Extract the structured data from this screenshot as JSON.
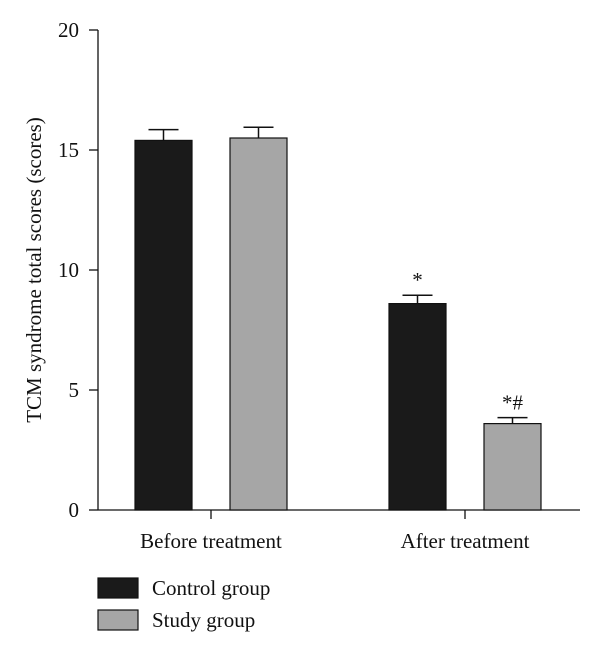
{
  "chart_data": {
    "type": "bar",
    "title": "",
    "xlabel": "",
    "ylabel": "TCM syndrome total scores (scores)",
    "categories": [
      "Before treatment",
      "After treatment"
    ],
    "series": [
      {
        "name": "Control group",
        "color": "#1a1a1a",
        "values": [
          15.4,
          8.6
        ],
        "errors": [
          0.45,
          0.35
        ],
        "annotations": [
          "",
          "*"
        ]
      },
      {
        "name": "Study group",
        "color": "#a6a6a6",
        "values": [
          15.5,
          3.6
        ],
        "errors": [
          0.45,
          0.25
        ],
        "annotations": [
          "",
          "*#"
        ]
      }
    ],
    "ylim": [
      0,
      20
    ],
    "yticks": [
      0,
      5,
      10,
      15,
      20
    ],
    "grid": false,
    "legend_position": "bottom-left"
  }
}
